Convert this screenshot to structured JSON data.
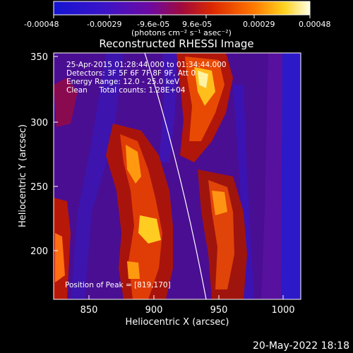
{
  "colorbar": {
    "tick_labels": [
      "-0.00048",
      "-0.00029",
      "-9.6e-05",
      "9.6e-05",
      "0.00029",
      "0.00048"
    ],
    "unit_label": "(photons cm⁻² s⁻¹ asec⁻²)",
    "colors": [
      "#1414c8",
      "#5a0a9a",
      "#b8140a",
      "#ff5a00",
      "#ffd21e",
      "#ffffee"
    ]
  },
  "image": {
    "title": "Reconstructed RHESSI Image",
    "x_label": "Heliocentric X (arcsec)",
    "y_label": "Heliocentric Y (arcsec)",
    "x_ticks": [
      "850",
      "900",
      "950",
      "1000"
    ],
    "y_ticks": [
      "200",
      "250",
      "300",
      "350"
    ],
    "xlim": [
      820,
      1012
    ],
    "ylim": [
      158,
      356
    ],
    "info_lines": [
      "25-Apr-2015 01:28:44.000 to 01:34:44.000",
      "Detectors: 3F 5F 6F 7F 8F 9F, Att 0",
      "Energy Range: 12.0 - 25.0 keV",
      "Clean     Total counts: 1.28E+04"
    ],
    "peak_label": "Position of Peak = [819,170]"
  },
  "footer": {
    "date": "20-May-2022 18:18"
  }
}
